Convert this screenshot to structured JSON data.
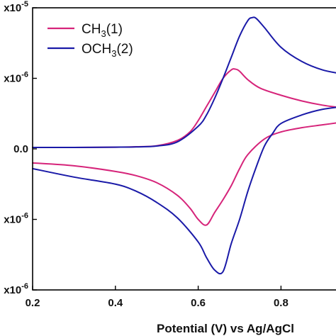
{
  "chart_data": {
    "type": "line",
    "xlabel": "Potential (V) vs Ag/AgCl",
    "ylabel": "",
    "xlim": [
      0.2,
      0.95
    ],
    "ylim": [
      -1e-05,
      1e-05
    ],
    "x_ticks": [
      {
        "value": 0.2,
        "label": "0.2"
      },
      {
        "value": 0.4,
        "label": "0.4"
      },
      {
        "value": 0.6,
        "label": "0.6"
      },
      {
        "value": 0.8,
        "label": "0.8"
      }
    ],
    "y_ticks": [
      {
        "value": 1e-05,
        "label": "x10-5",
        "base": "x10",
        "exp": "-5"
      },
      {
        "value": 5e-06,
        "label": "x10-6",
        "base": "x10",
        "exp": "-6"
      },
      {
        "value": 0.0,
        "label": "0.0",
        "base": "0.0",
        "exp": ""
      },
      {
        "value": -5e-06,
        "label": "x10-6",
        "base": "x10",
        "exp": "-6"
      },
      {
        "value": -1e-05,
        "label": "x10-6",
        "base": "x10",
        "exp": "-6"
      }
    ],
    "legend": {
      "position": "top-left",
      "entries": [
        {
          "text": "CH",
          "sub": "3",
          "suffix": "(1)",
          "color": "#d6247a"
        },
        {
          "text": "OCH",
          "sub": "3",
          "suffix": "(2)",
          "color": "#1a1aa8"
        }
      ]
    },
    "series": [
      {
        "name": "CH3(1)",
        "color": "#d6247a",
        "forward": {
          "x": [
            0.2,
            0.3,
            0.4,
            0.45,
            0.5,
            0.55,
            0.58,
            0.6,
            0.62,
            0.64,
            0.66,
            0.68,
            0.69,
            0.7,
            0.72,
            0.75,
            0.8,
            0.85,
            0.9,
            0.95
          ],
          "y": [
            1e-07,
            1e-07,
            1.2e-07,
            1.5e-07,
            2.2e-07,
            6e-07,
            1.2e-06,
            2e-06,
            3e-06,
            4e-06,
            5e-06,
            5.6e-06,
            5.65e-06,
            5.5e-06,
            4.9e-06,
            4.3e-06,
            3.8e-06,
            3.4e-06,
            3.1e-06,
            2.9e-06
          ]
        },
        "reverse": {
          "x": [
            0.95,
            0.9,
            0.85,
            0.8,
            0.76,
            0.72,
            0.7,
            0.68,
            0.66,
            0.64,
            0.62,
            0.6,
            0.58,
            0.55,
            0.5,
            0.45,
            0.4,
            0.3,
            0.2
          ],
          "y": [
            1.9e-06,
            1.7e-06,
            1.5e-06,
            1.2e-06,
            7e-07,
            -4e-07,
            -1.4e-06,
            -2.6e-06,
            -3.6e-06,
            -4.5e-06,
            -5.4e-06,
            -5e-06,
            -4.2e-06,
            -3.3e-06,
            -2.4e-06,
            -1.9e-06,
            -1.6e-06,
            -1.2e-06,
            -1e-06
          ]
        }
      },
      {
        "name": "OCH3(2)",
        "color": "#1a1aa8",
        "forward": {
          "x": [
            0.2,
            0.3,
            0.4,
            0.45,
            0.5,
            0.55,
            0.6,
            0.62,
            0.64,
            0.66,
            0.68,
            0.7,
            0.72,
            0.73,
            0.74,
            0.76,
            0.8,
            0.85,
            0.9,
            0.95
          ],
          "y": [
            1e-07,
            1e-07,
            1.2e-07,
            1.4e-07,
            2e-07,
            5e-07,
            1.6e-06,
            2.4e-06,
            3.6e-06,
            5e-06,
            6.5e-06,
            8e-06,
            9.1e-06,
            9.3e-06,
            9.25e-06,
            8.6e-06,
            7.2e-06,
            6.2e-06,
            5.6e-06,
            5.3e-06
          ]
        },
        "reverse": {
          "x": [
            0.95,
            0.9,
            0.85,
            0.8,
            0.78,
            0.76,
            0.74,
            0.72,
            0.7,
            0.68,
            0.66,
            0.64,
            0.62,
            0.6,
            0.55,
            0.5,
            0.45,
            0.4,
            0.3,
            0.2
          ],
          "y": [
            3e-06,
            2.8e-06,
            2.4e-06,
            1.8e-06,
            1.1e-06,
            2e-07,
            -1.3e-06,
            -3e-06,
            -5e-06,
            -6.7e-06,
            -8.7e-06,
            -8.6e-06,
            -7.7e-06,
            -6.6e-06,
            -4.9e-06,
            -3.8e-06,
            -3e-06,
            -2.5e-06,
            -2e-06,
            -1.4e-06
          ]
        }
      }
    ]
  }
}
